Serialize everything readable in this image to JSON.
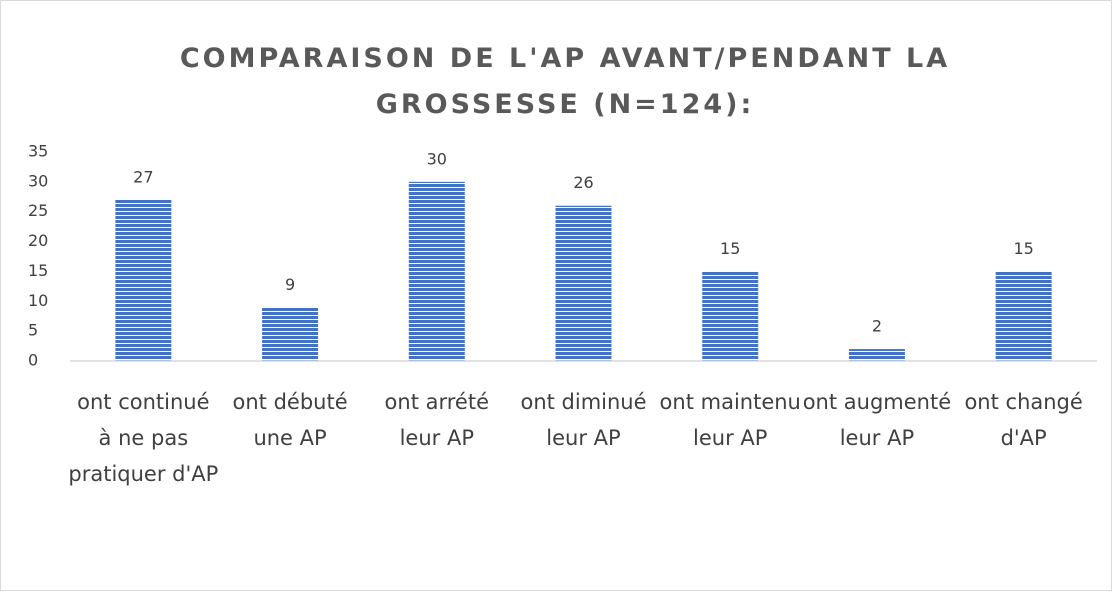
{
  "chart_data": {
    "type": "bar",
    "title": "COMPARAISON DE L'AP AVANT/PENDANT LA GROSSESSE (N=124):",
    "categories": [
      "ont continué à ne pas pratiquer d'AP",
      "ont débuté une AP",
      "ont arrété leur AP",
      "ont diminué leur AP",
      "ont maintenu leur AP",
      "ont augmenté leur AP",
      "ont changé d'AP"
    ],
    "values": [
      27,
      9,
      30,
      26,
      15,
      2,
      15
    ],
    "color": "#4472c4",
    "ylim": [
      0,
      35
    ],
    "yticks": [
      0,
      5,
      10,
      15,
      20,
      25,
      30,
      35
    ],
    "grid": false
  }
}
